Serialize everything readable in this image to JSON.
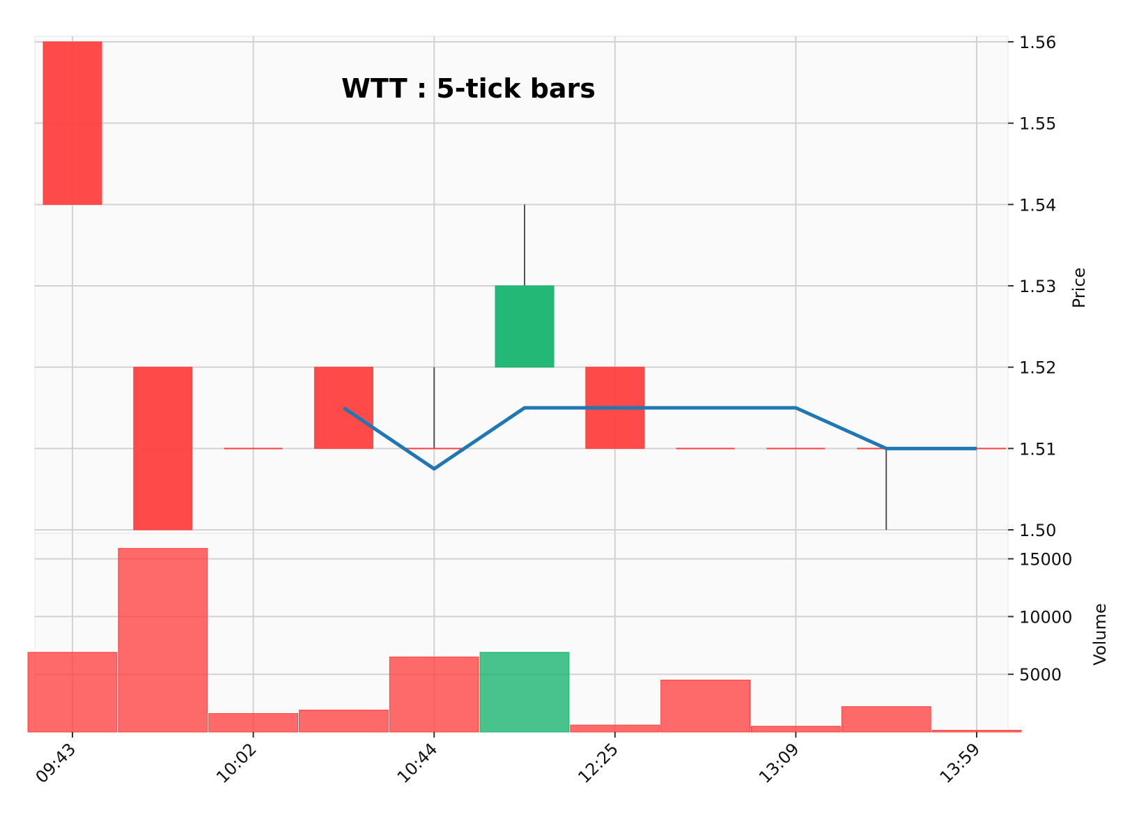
{
  "chart_data": {
    "type": "candlestick",
    "title": "WTT : 5-tick bars",
    "ylabel": "Price",
    "volume_label": "Volume",
    "x_tick_labels": [
      "09:43",
      "10:02",
      "10:44",
      "12:25",
      "13:09",
      "13:59"
    ],
    "x_tick_positions": [
      0,
      2,
      4,
      6,
      8,
      10
    ],
    "price_ylim": [
      1.5,
      1.56
    ],
    "price_ticks": [
      "1.50",
      "1.51",
      "1.52",
      "1.53",
      "1.54",
      "1.55",
      "1.56"
    ],
    "volume_ylim": [
      0,
      16000
    ],
    "volume_ticks": [
      "5000",
      "10000",
      "15000"
    ],
    "colors": {
      "up": "#17b46e",
      "down": "#ff4040",
      "wick": "#555555",
      "ma": "#1f77b4"
    },
    "bars": [
      {
        "open": 1.56,
        "high": 1.56,
        "low": 1.54,
        "close": 1.54,
        "volume": 6900
      },
      {
        "open": 1.52,
        "high": 1.52,
        "low": 1.5,
        "close": 1.5,
        "volume": 15900
      },
      {
        "open": 1.51,
        "high": 1.51,
        "low": 1.51,
        "close": 1.51,
        "volume": 1600
      },
      {
        "open": 1.52,
        "high": 1.52,
        "low": 1.51,
        "close": 1.51,
        "volume": 1900
      },
      {
        "open": 1.51,
        "high": 1.52,
        "low": 1.51,
        "close": 1.51,
        "volume": 6500
      },
      {
        "open": 1.52,
        "high": 1.54,
        "low": 1.52,
        "close": 1.53,
        "volume": 6900
      },
      {
        "open": 1.52,
        "high": 1.52,
        "low": 1.51,
        "close": 1.51,
        "volume": 600
      },
      {
        "open": 1.51,
        "high": 1.51,
        "low": 1.51,
        "close": 1.51,
        "volume": 4500
      },
      {
        "open": 1.51,
        "high": 1.51,
        "low": 1.51,
        "close": 1.51,
        "volume": 500
      },
      {
        "open": 1.51,
        "high": 1.51,
        "low": 1.5,
        "close": 1.51,
        "volume": 2200
      },
      {
        "open": 1.51,
        "high": 1.51,
        "low": 1.51,
        "close": 1.51,
        "volume": 150
      }
    ],
    "moving_average": [
      null,
      null,
      null,
      1.515,
      1.5075,
      1.515,
      1.515,
      1.515,
      1.515,
      1.51,
      1.51
    ]
  }
}
